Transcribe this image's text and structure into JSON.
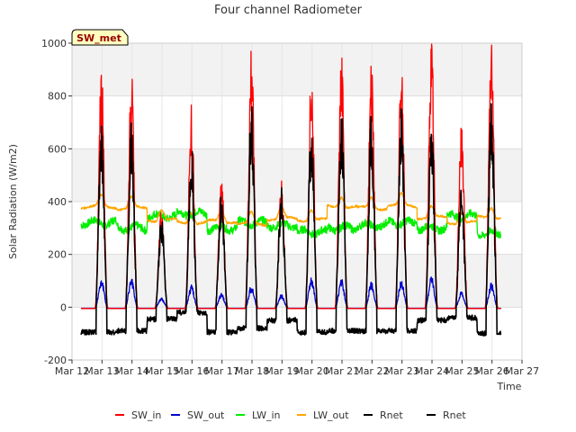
{
  "chart_data": {
    "type": "line",
    "title": "Four channel Radiometer",
    "xlabel": "Time",
    "ylabel": "Solar Radiation (W/m2)",
    "ylim": [
      -200,
      1000
    ],
    "yticks": [
      -200,
      0,
      200,
      400,
      600,
      800,
      1000
    ],
    "xlim": [
      12,
      27
    ],
    "xticks": [
      {
        "v": 12,
        "label": "Mar 12"
      },
      {
        "v": 13,
        "label": "Mar 13"
      },
      {
        "v": 14,
        "label": "Mar 14"
      },
      {
        "v": 15,
        "label": "Mar 15"
      },
      {
        "v": 16,
        "label": "Mar 16"
      },
      {
        "v": 17,
        "label": "Mar 17"
      },
      {
        "v": 18,
        "label": "Mar 18"
      },
      {
        "v": 19,
        "label": "Mar 19"
      },
      {
        "v": 20,
        "label": "Mar 20"
      },
      {
        "v": 21,
        "label": "Mar 21"
      },
      {
        "v": 22,
        "label": "Mar 22"
      },
      {
        "v": 23,
        "label": "Mar 23"
      },
      {
        "v": 24,
        "label": "Mar 24"
      },
      {
        "v": 25,
        "label": "Mar 25"
      },
      {
        "v": 26,
        "label": "Mar 26"
      },
      {
        "v": 27,
        "label": "Mar 27"
      }
    ],
    "grid": true,
    "legend_position": "bottom",
    "station_label": "SW_met",
    "x_start": 12.3,
    "x_end": 26.3,
    "daily": [
      {
        "day": 13,
        "sw_in": 795,
        "sw_out": 95,
        "lw_in": 320,
        "lw_out": 420,
        "rnet": 620,
        "rnet_night": -95
      },
      {
        "day": 14,
        "sw_in": 790,
        "sw_out": 95,
        "lw_in": 300,
        "lw_out": 415,
        "rnet": 610,
        "rnet_night": -90
      },
      {
        "day": 15,
        "sw_in": 330,
        "sw_out": 30,
        "lw_in": 345,
        "lw_out": 370,
        "rnet": 300,
        "rnet_night": -45
      },
      {
        "day": 16,
        "sw_in": 670,
        "sw_out": 70,
        "lw_in": 355,
        "lw_out": 360,
        "rnet": 540,
        "rnet_night": -20
      },
      {
        "day": 17,
        "sw_in": 445,
        "sw_out": 45,
        "lw_in": 300,
        "lw_out": 365,
        "rnet": 380,
        "rnet_night": -95
      },
      {
        "day": 18,
        "sw_in": 865,
        "sw_out": 70,
        "lw_in": 320,
        "lw_out": 355,
        "rnet": 700,
        "rnet_night": -80
      },
      {
        "day": 19,
        "sw_in": 420,
        "sw_out": 40,
        "lw_in": 310,
        "lw_out": 375,
        "rnet": 400,
        "rnet_night": -50
      },
      {
        "day": 20,
        "sw_in": 815,
        "sw_out": 95,
        "lw_in": 285,
        "lw_out": 370,
        "rnet": 640,
        "rnet_night": -95
      },
      {
        "day": 21,
        "sw_in": 850,
        "sw_out": 95,
        "lw_in": 300,
        "lw_out": 420,
        "rnet": 665,
        "rnet_night": -90
      },
      {
        "day": 22,
        "sw_in": 820,
        "sw_out": 80,
        "lw_in": 310,
        "lw_out": 415,
        "rnet": 635,
        "rnet_night": -90
      },
      {
        "day": 23,
        "sw_in": 845,
        "sw_out": 90,
        "lw_in": 320,
        "lw_out": 425,
        "rnet": 665,
        "rnet_night": -90
      },
      {
        "day": 24,
        "sw_in": 920,
        "sw_out": 100,
        "lw_in": 300,
        "lw_out": 380,
        "rnet": 640,
        "rnet_night": -50
      },
      {
        "day": 25,
        "sw_in": 615,
        "sw_out": 50,
        "lw_in": 345,
        "lw_out": 360,
        "rnet": 420,
        "rnet_night": -40
      },
      {
        "day": 26,
        "sw_in": 880,
        "sw_out": 80,
        "lw_in": 280,
        "lw_out": 380,
        "rnet": 690,
        "rnet_night": -100
      }
    ],
    "series": [
      {
        "name": "SW_in",
        "key": "sw_in",
        "color": "#ff0000"
      },
      {
        "name": "SW_out",
        "key": "sw_out",
        "color": "#0000cc"
      },
      {
        "name": "LW_in",
        "key": "lw_in",
        "color": "#00ee00"
      },
      {
        "name": "LW_out",
        "key": "lw_out",
        "color": "#ffa500"
      },
      {
        "name": "Rnet",
        "key": "rnet",
        "color": "#000000"
      },
      {
        "name": "Rnet",
        "key": "rnet",
        "color": "#000000"
      }
    ]
  }
}
